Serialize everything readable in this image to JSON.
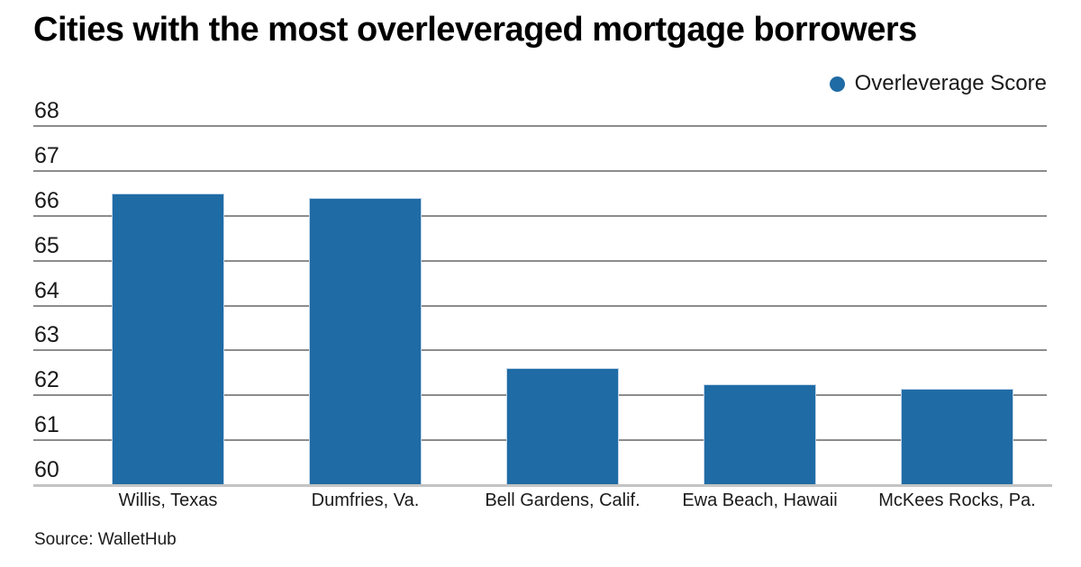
{
  "title": "Cities with the most overleveraged mortgage borrowers",
  "legend": {
    "label": "Overleverage Score"
  },
  "source": "Source: WalletHub",
  "colors": {
    "bar": "#1F6BA5",
    "grid": "#8C8C8C",
    "axis": "#C4C4C4",
    "text": "#1A1A1A"
  },
  "chart_data": {
    "type": "bar",
    "title": "Cities with the most overleveraged mortgage borrowers",
    "categories": [
      "Willis, Texas",
      "Dumfries, Va.",
      "Bell Gardens, Calif.",
      "Ewa Beach, Hawaii",
      "McKees Rocks, Pa."
    ],
    "series": [
      {
        "name": "Overleverage Score",
        "values": [
          66.5,
          66.4,
          62.6,
          62.25,
          62.15
        ]
      }
    ],
    "xlabel": "",
    "ylabel": "",
    "ylim": [
      60,
      68
    ],
    "yticks": [
      60,
      61,
      62,
      63,
      64,
      65,
      66,
      67,
      68
    ],
    "grid": true,
    "legend_position": "top-right"
  }
}
